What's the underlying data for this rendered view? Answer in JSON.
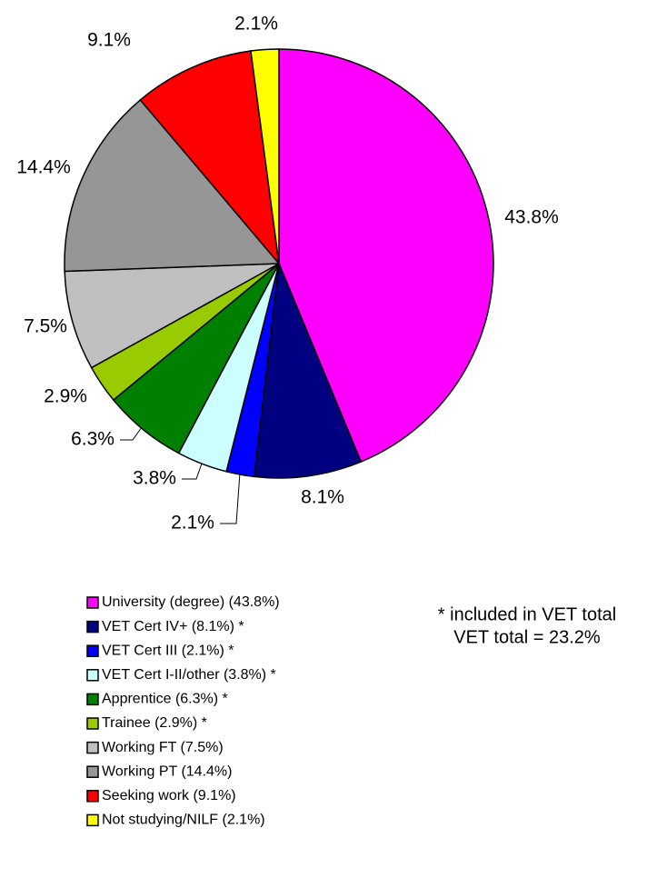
{
  "chart_data": {
    "type": "pie",
    "categories": [
      "University (degree) (43.8%)",
      "VET Cert IV+ (8.1%) *",
      "VET Cert III (2.1%) *",
      "VET Cert I-II/other (3.8%) *",
      "Apprentice (6.3%) *",
      "Trainee (2.9%) *",
      "Working FT (7.5%)",
      "Working PT (14.4%)",
      "Seeking work (9.1%)",
      "Not studying/NILF (2.1%)"
    ],
    "values": [
      43.8,
      8.1,
      2.1,
      3.8,
      6.3,
      2.9,
      7.5,
      14.4,
      9.1,
      2.1
    ],
    "value_labels": [
      "43.8%",
      "8.1%",
      "2.1%",
      "3.8%",
      "6.3%",
      "2.9%",
      "7.5%",
      "14.4%",
      "9.1%",
      "2.1%"
    ],
    "colors": [
      "#ff00ff",
      "#000080",
      "#0000ff",
      "#ccffff",
      "#008000",
      "#99cc00",
      "#c0c0c0",
      "#969696",
      "#ff0000",
      "#ffff00"
    ],
    "annotations": [
      "* included in VET total",
      "VET total = 23.2%"
    ]
  }
}
